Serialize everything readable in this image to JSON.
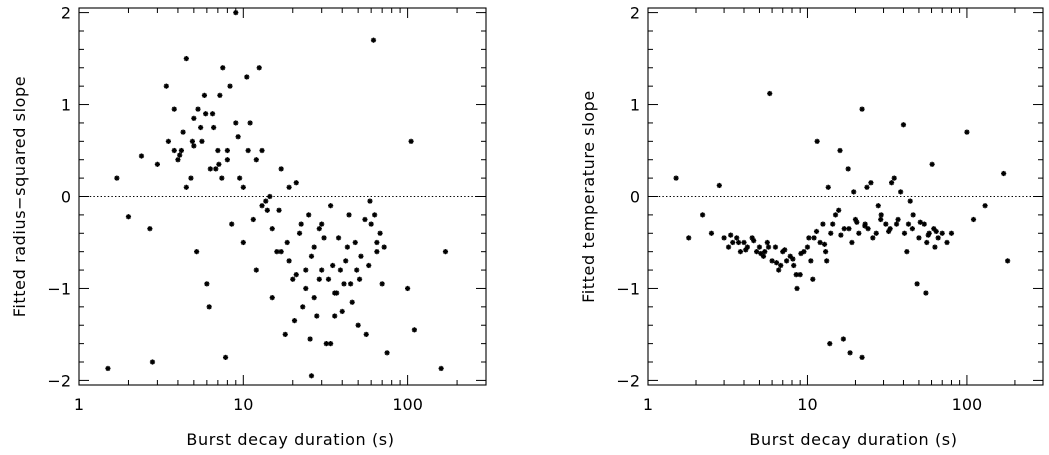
{
  "chart_data": [
    {
      "type": "scatter",
      "title": "",
      "xlabel": "Burst decay duration (s)",
      "ylabel": "Fitted radius−squared slope",
      "xscale": "log",
      "xlim": [
        1,
        300
      ],
      "ylim": [
        -2.05,
        2.05
      ],
      "x_ticks": [
        1,
        10,
        100
      ],
      "x_tick_labels": [
        "1",
        "10",
        "100"
      ],
      "y_ticks": [
        -2,
        -1,
        0,
        1,
        2
      ],
      "y_tick_labels": [
        "−2",
        "−1",
        "0",
        "1",
        "2"
      ],
      "reference_line": {
        "y": 0,
        "style": "dotted"
      },
      "series": [
        {
          "marker": "asterisk",
          "color": "#000000",
          "x": [
            1.5,
            1.7,
            2.0,
            2.4,
            2.7,
            2.8,
            3.0,
            3.4,
            3.5,
            3.8,
            4.0,
            4.2,
            4.5,
            4.5,
            4.8,
            5.0,
            5.2,
            5.5,
            5.8,
            6.0,
            6.2,
            6.5,
            6.8,
            7.0,
            7.2,
            7.5,
            7.8,
            8.0,
            8.5,
            9.0,
            9.5,
            10.0,
            10.5,
            11.0,
            12.0,
            12.5,
            13.0,
            14.0,
            15.0,
            16.0,
            17.0,
            18.0,
            19.0,
            20.0,
            21.0,
            22.0,
            23.0,
            24.0,
            25.0,
            26.0,
            27.0,
            28.0,
            29.0,
            30.0,
            32.0,
            34.0,
            35.0,
            36.0,
            38.0,
            40.0,
            42.0,
            45.0,
            48.0,
            50.0,
            55.0,
            60.0,
            62.0,
            65.0,
            70.0,
            75.0,
            100.0,
            105.0,
            110.0,
            160.0,
            170.0,
            3.8,
            4.3,
            5.0,
            5.6,
            6.3,
            7.1,
            8.0,
            9.0,
            10.0,
            11.5,
            13.0,
            15.0,
            17.0,
            19.0,
            21.0,
            24.0,
            27.0,
            30.0,
            33.0,
            37.0,
            41.0,
            46.0,
            52.0,
            58.0,
            65.0,
            4.1,
            4.9,
            5.9,
            7.4,
            9.3,
            12.0,
            14.5,
            18.5,
            22.5,
            26.0,
            31.0,
            36.0,
            43.0,
            49.0,
            56.0,
            63.0,
            72.0,
            5.3,
            6.6,
            8.3,
            10.7,
            13.7,
            16.5,
            20.5,
            25.5,
            29.0,
            34.0,
            39.0,
            44.0,
            51.0,
            59.0,
            68.0
          ],
          "y": [
            -1.87,
            0.2,
            -0.22,
            0.44,
            -0.35,
            -1.8,
            0.35,
            1.2,
            0.6,
            0.95,
            0.4,
            0.5,
            1.5,
            0.1,
            0.2,
            0.55,
            -0.6,
            0.75,
            1.1,
            -0.95,
            -1.2,
            0.9,
            0.3,
            0.5,
            1.1,
            1.4,
            -1.75,
            0.4,
            -0.3,
            2.0,
            0.2,
            -0.5,
            1.3,
            0.8,
            -0.8,
            1.4,
            0.5,
            -0.15,
            -1.1,
            -0.6,
            0.3,
            -1.5,
            0.1,
            -0.9,
            0.15,
            -0.4,
            -1.2,
            -0.8,
            -0.2,
            -1.95,
            -0.55,
            -1.3,
            -0.9,
            -0.3,
            -1.6,
            -0.1,
            -0.75,
            -1.05,
            -0.45,
            -1.25,
            -0.7,
            -0.95,
            -0.5,
            -1.4,
            -0.25,
            -0.3,
            1.7,
            -0.6,
            -0.95,
            -1.7,
            -1.0,
            0.6,
            -1.45,
            -1.87,
            -0.6,
            0.5,
            0.7,
            0.85,
            0.6,
            0.3,
            0.35,
            0.5,
            0.8,
            0.1,
            -0.25,
            -0.1,
            -0.35,
            -0.6,
            -0.7,
            -0.85,
            -1.0,
            -1.1,
            -0.8,
            -0.9,
            -1.05,
            -0.95,
            -1.15,
            -0.65,
            -0.75,
            -0.5,
            0.45,
            0.6,
            0.9,
            0.2,
            0.65,
            0.4,
            0.0,
            -0.5,
            -0.3,
            -0.65,
            -0.45,
            -1.3,
            -0.55,
            -0.8,
            -1.5,
            -0.2,
            -0.55,
            0.95,
            0.75,
            1.2,
            0.5,
            -0.05,
            -0.15,
            -1.35,
            -1.55,
            -0.35,
            -1.6,
            -0.8,
            -0.2,
            -0.9,
            -0.05,
            -0.4
          ]
        }
      ]
    },
    {
      "type": "scatter",
      "title": "",
      "xlabel": "Burst decay duration (s)",
      "ylabel": "Fitted temperature slope",
      "xscale": "log",
      "xlim": [
        1,
        300
      ],
      "ylim": [
        -2.05,
        2.05
      ],
      "x_ticks": [
        1,
        10,
        100
      ],
      "x_tick_labels": [
        "1",
        "10",
        "100"
      ],
      "y_ticks": [
        -2,
        -1,
        0,
        1,
        2
      ],
      "y_tick_labels": [
        "−2",
        "−1",
        "0",
        "1",
        "2"
      ],
      "reference_line": {
        "y": 0,
        "style": "dotted"
      },
      "series": [
        {
          "marker": "asterisk",
          "color": "#000000",
          "x": [
            1.5,
            1.8,
            2.2,
            2.5,
            2.8,
            3.0,
            3.2,
            3.4,
            3.6,
            3.8,
            4.0,
            4.2,
            4.5,
            4.8,
            5.0,
            5.3,
            5.6,
            5.8,
            6.0,
            6.3,
            6.6,
            7.0,
            7.4,
            7.8,
            8.2,
            8.6,
            9.0,
            9.5,
            10.0,
            10.5,
            11.0,
            11.5,
            12.0,
            12.5,
            13.0,
            13.5,
            14.0,
            15.0,
            16.0,
            17.0,
            18.0,
            19.0,
            20.0,
            21.0,
            22.0,
            23.0,
            24.0,
            25.0,
            27.0,
            29.0,
            31.0,
            33.0,
            35.0,
            37.0,
            40.0,
            43.0,
            46.0,
            50.0,
            54.0,
            58.0,
            62.0,
            66.0,
            70.0,
            75.0,
            80.0,
            100.0,
            110.0,
            130.0,
            170.0,
            180.0,
            3.3,
            3.7,
            4.1,
            4.6,
            5.1,
            5.7,
            6.4,
            7.2,
            8.1,
            9.1,
            10.2,
            11.4,
            12.8,
            14.4,
            16.2,
            18.2,
            20.4,
            22.9,
            25.7,
            28.8,
            32.3,
            36.2,
            40.6,
            45.5,
            51.0,
            57.2,
            64.2,
            5.4,
            6.8,
            8.5,
            10.8,
            13.2,
            15.7,
            19.5,
            23.6,
            27.8,
            33.7,
            38.4,
            44.1,
            48.7,
            55.3,
            60.5,
            13.8,
            16.8,
            18.5,
            22.0,
            42.0,
            56.0,
            63.0
          ],
          "y": [
            0.2,
            -0.45,
            -0.2,
            -0.4,
            0.12,
            -0.45,
            -0.55,
            -0.5,
            -0.45,
            -0.6,
            -0.5,
            -0.55,
            -0.45,
            -0.6,
            -0.55,
            -0.65,
            -0.5,
            1.12,
            -0.7,
            -0.55,
            -0.8,
            -0.6,
            -0.7,
            -0.65,
            -0.75,
            -1.0,
            -0.85,
            -0.6,
            -0.55,
            -0.7,
            -0.45,
            0.6,
            -0.5,
            -0.3,
            -0.6,
            0.1,
            -0.4,
            -0.2,
            0.5,
            -0.35,
            0.3,
            -0.5,
            -0.25,
            -0.4,
            0.95,
            -0.3,
            -0.35,
            0.15,
            -0.4,
            -0.2,
            -0.3,
            -0.35,
            0.2,
            -0.25,
            0.78,
            -0.3,
            -0.2,
            -0.45,
            -0.3,
            -0.4,
            -0.35,
            -0.45,
            -0.4,
            -0.5,
            -0.4,
            0.7,
            -0.25,
            -0.1,
            0.25,
            -0.7,
            -0.42,
            -0.5,
            -0.58,
            -0.48,
            -0.62,
            -0.55,
            -0.72,
            -0.58,
            -0.68,
            -0.62,
            -0.45,
            -0.38,
            -0.52,
            -0.3,
            -0.42,
            -0.35,
            -0.28,
            -0.32,
            -0.45,
            -0.25,
            -0.38,
            -0.3,
            -0.4,
            -0.35,
            -0.28,
            -0.42,
            -0.38,
            -0.6,
            -0.75,
            -0.85,
            -0.9,
            -0.7,
            -0.15,
            0.05,
            0.1,
            -0.1,
            0.15,
            0.05,
            -0.05,
            -0.95,
            -1.05,
            0.35,
            -1.6,
            -1.55,
            -1.7,
            -1.75,
            -0.6,
            -0.5,
            -0.55
          ]
        }
      ]
    }
  ]
}
